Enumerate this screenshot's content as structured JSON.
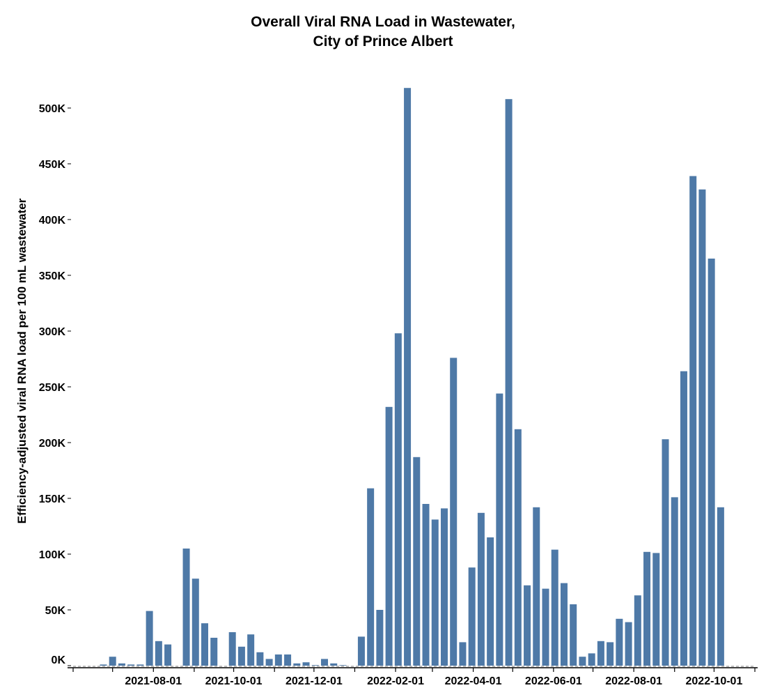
{
  "chart_data": {
    "type": "bar",
    "title": [
      "Overall Viral RNA Load in Wastewater,",
      "City of Prince Albert"
    ],
    "xlabel": "",
    "ylabel": "Efficiency-adjusted viral RNA load per 100 mL wastewater",
    "ylim": [
      0,
      520000
    ],
    "yticks": [
      0,
      50000,
      100000,
      150000,
      200000,
      250000,
      300000,
      350000,
      400000,
      450000,
      500000
    ],
    "ytick_labels": [
      "0K",
      "50K",
      "100K",
      "150K",
      "200K",
      "250K",
      "300K",
      "350K",
      "400K",
      "450K",
      "500K"
    ],
    "xlim": [
      "2021-06-01",
      "2022-11-15"
    ],
    "xticks": [
      "2021-08-01",
      "2021-10-01",
      "2021-12-01",
      "2022-02-01",
      "2022-04-01",
      "2022-06-01",
      "2022-08-01",
      "2022-10-01"
    ],
    "xtick_labels": [
      "2021-08-01",
      "2021-10-01",
      "2021-12-01",
      "2022-02-01",
      "2022-04-01",
      "2022-06-01",
      "2022-08-01",
      "2022-10-01"
    ],
    "x_start": "2021-06-24",
    "x_interval_days": 7,
    "values": [
      1000,
      8000,
      2000,
      1000,
      1000,
      49000,
      22000,
      19000,
      0,
      105000,
      78000,
      38000,
      25000,
      0,
      30000,
      17000,
      28000,
      12000,
      6000,
      10000,
      10000,
      2000,
      3000,
      500,
      6000,
      2000,
      500,
      0,
      26000,
      159000,
      50000,
      232000,
      298000,
      518000,
      187000,
      145000,
      131000,
      141000,
      276000,
      21000,
      88000,
      137000,
      115000,
      244000,
      508000,
      212000,
      72000,
      142000,
      69000,
      104000,
      74000,
      55000,
      8000,
      11000,
      22000,
      21000,
      42000,
      39000,
      63000,
      102000,
      101000,
      203000,
      151000,
      264000,
      439000,
      427000,
      365000,
      142000
    ],
    "bar_color": "#4e79a7",
    "grid": false,
    "legend": "none"
  }
}
